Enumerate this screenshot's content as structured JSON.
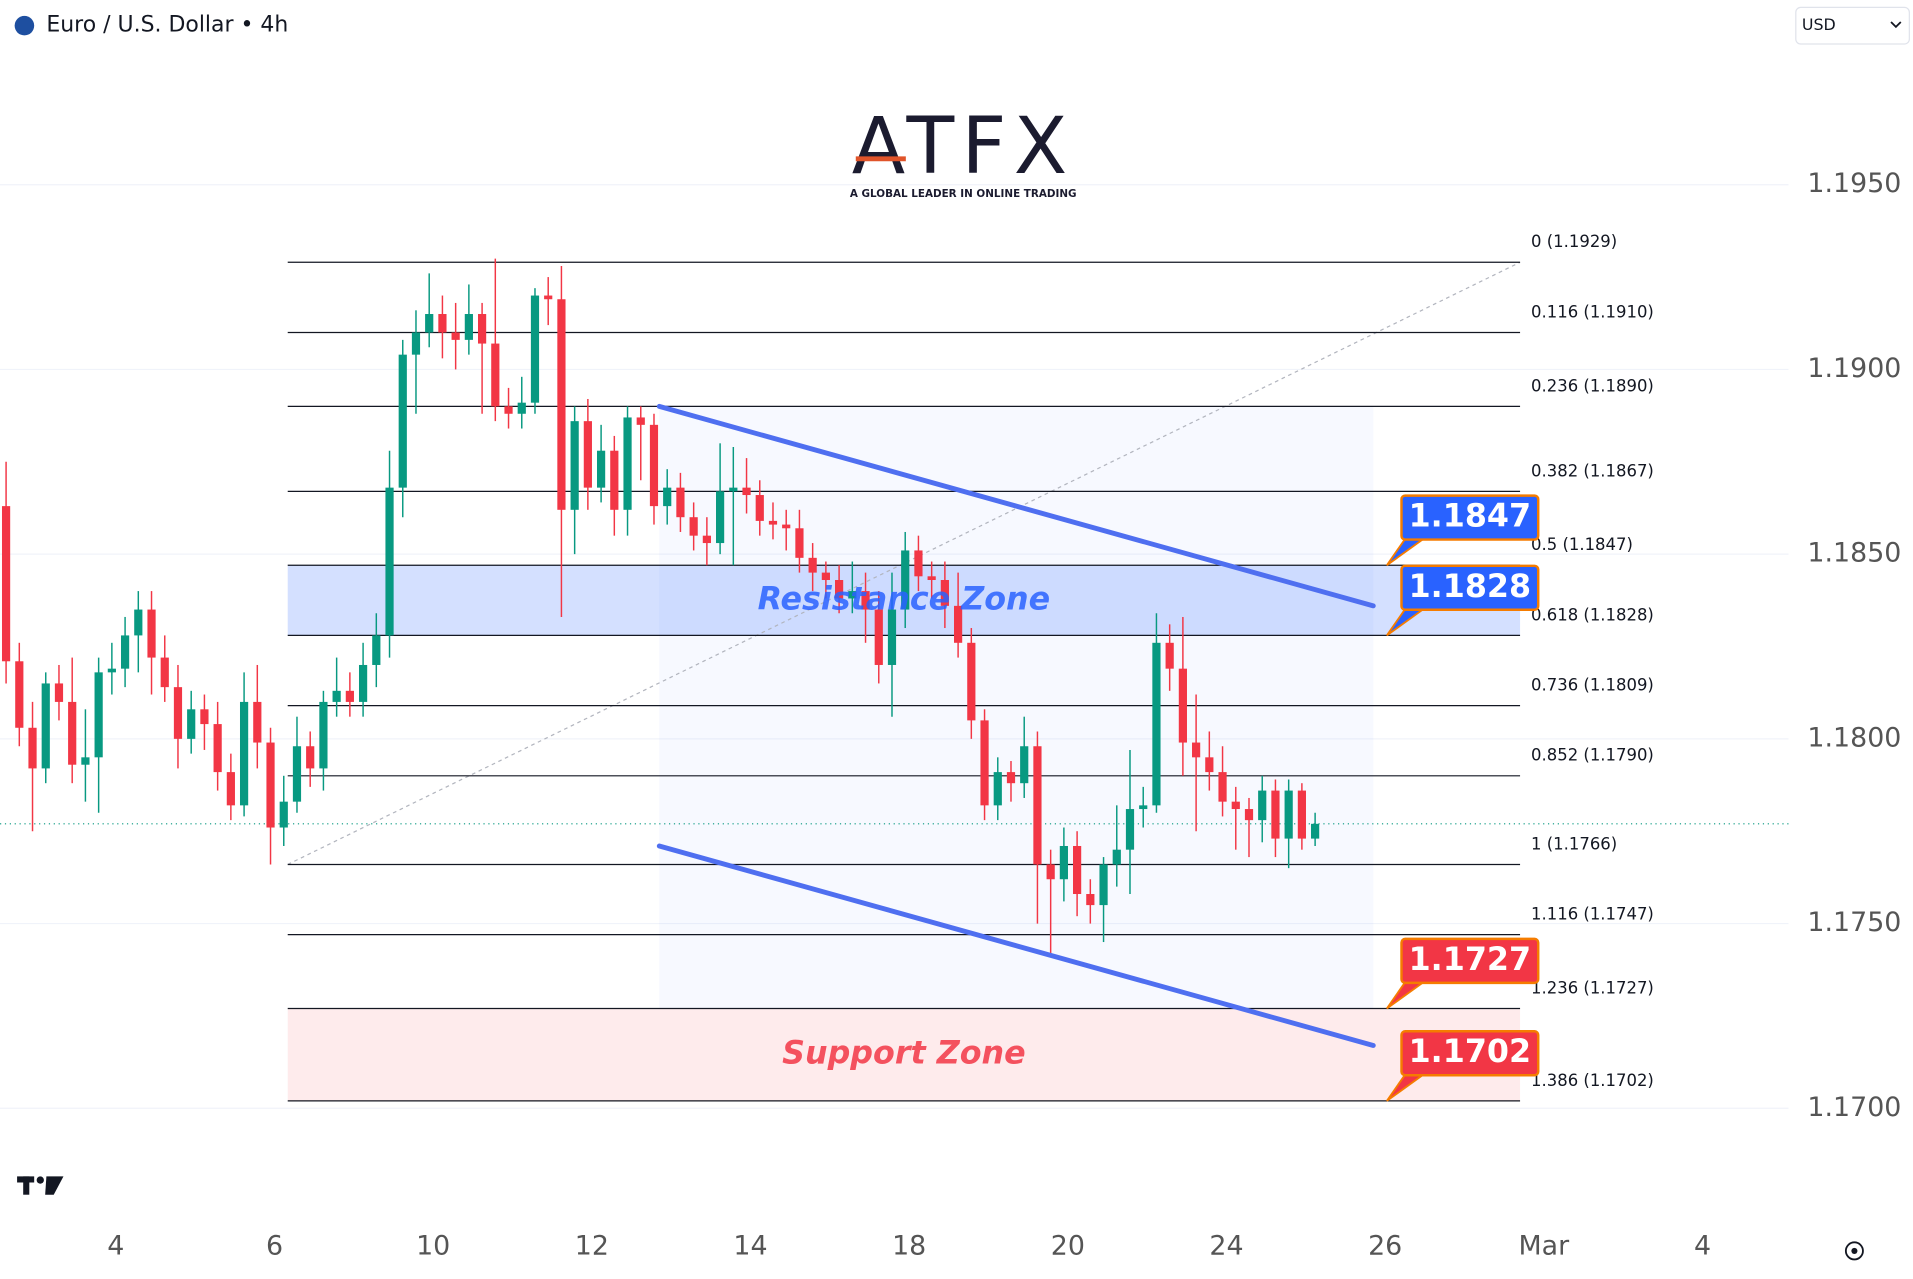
{
  "header": {
    "title": "Euro / U.S. Dollar • 4h",
    "currency": "USD"
  },
  "logo": {
    "name": "ATFX",
    "tagline": "A GLOBAL LEADER IN ONLINE TRADING"
  },
  "chart_data": {
    "type": "candlestick",
    "open": [
      1.1863,
      1.1821,
      1.1803,
      1.1792,
      1.1815,
      1.181,
      1.1793,
      1.1795,
      1.1818,
      1.1819,
      1.1828,
      1.1835,
      1.1822,
      1.1814,
      1.18,
      1.1808,
      1.1804,
      1.1791,
      1.1782,
      1.181,
      1.1799,
      1.1776,
      1.1783,
      1.1798,
      1.1792,
      1.181,
      1.1813,
      1.181,
      1.182,
      1.1828,
      1.1868,
      1.1904,
      1.191,
      1.1915,
      1.191,
      1.1908,
      1.1915,
      1.1907,
      1.189,
      1.1888,
      1.1891,
      1.192,
      1.1919,
      1.1862,
      1.1886,
      1.1868,
      1.1878,
      1.1862,
      1.1887,
      1.1885,
      1.1863,
      1.1868,
      1.186,
      1.1855,
      1.1853,
      1.1867,
      1.1868,
      1.1866,
      1.1859,
      1.1858,
      1.1857,
      1.1849,
      1.1845,
      1.1843,
      1.1838,
      1.184,
      1.1835,
      1.182,
      1.1835,
      1.1851,
      1.1844,
      1.1843,
      1.1836,
      1.1826,
      1.1805,
      1.1782,
      1.1791,
      1.1788,
      1.1798,
      1.1766,
      1.1762,
      1.1771,
      1.1758,
      1.1755,
      1.1766,
      1.177,
      1.1781,
      1.1782,
      1.1826,
      1.1819,
      1.1799,
      1.1795,
      1.1791,
      1.1783,
      1.1781,
      1.1778,
      1.1786,
      1.1773,
      1.1786,
      1.1773
    ],
    "high": [
      1.1875,
      1.1826,
      1.181,
      1.1818,
      1.182,
      1.1822,
      1.1808,
      1.1822,
      1.1826,
      1.1833,
      1.184,
      1.184,
      1.1828,
      1.182,
      1.1813,
      1.1812,
      1.181,
      1.1796,
      1.1818,
      1.182,
      1.1803,
      1.179,
      1.1806,
      1.1802,
      1.1813,
      1.1822,
      1.1818,
      1.1826,
      1.1834,
      1.1878,
      1.1908,
      1.1916,
      1.1926,
      1.192,
      1.1918,
      1.1923,
      1.1918,
      1.193,
      1.1895,
      1.1898,
      1.1922,
      1.1925,
      1.1928,
      1.189,
      1.1892,
      1.1885,
      1.1882,
      1.189,
      1.189,
      1.1888,
      1.1873,
      1.1872,
      1.1864,
      1.186,
      1.188,
      1.1879,
      1.1876,
      1.187,
      1.1864,
      1.1862,
      1.1862,
      1.1853,
      1.1848,
      1.1847,
      1.1848,
      1.1845,
      1.184,
      1.1845,
      1.1856,
      1.1855,
      1.1848,
      1.1848,
      1.1845,
      1.183,
      1.1808,
      1.1795,
      1.1794,
      1.1806,
      1.1802,
      1.177,
      1.1776,
      1.1775,
      1.1762,
      1.1768,
      1.1782,
      1.1797,
      1.1787,
      1.1834,
      1.1831,
      1.1833,
      1.1812,
      1.1802,
      1.1798,
      1.1787,
      1.1784,
      1.179,
      1.1789,
      1.1789,
      1.1788,
      1.178
    ],
    "low": [
      1.1815,
      1.1798,
      1.1775,
      1.1788,
      1.1805,
      1.1788,
      1.1783,
      1.178,
      1.1812,
      1.1814,
      1.1818,
      1.1812,
      1.181,
      1.1792,
      1.1796,
      1.1797,
      1.1786,
      1.1778,
      1.1779,
      1.1792,
      1.1766,
      1.1771,
      1.178,
      1.1787,
      1.1786,
      1.1806,
      1.1806,
      1.1806,
      1.1814,
      1.1822,
      1.186,
      1.1888,
      1.1906,
      1.1903,
      1.19,
      1.1904,
      1.1888,
      1.1886,
      1.1884,
      1.1884,
      1.1888,
      1.1912,
      1.1833,
      1.185,
      1.1862,
      1.1864,
      1.1855,
      1.1855,
      1.187,
      1.1858,
      1.1858,
      1.1856,
      1.1851,
      1.1847,
      1.185,
      1.1847,
      1.1861,
      1.1855,
      1.1854,
      1.1851,
      1.1845,
      1.184,
      1.1838,
      1.1834,
      1.1834,
      1.1826,
      1.1815,
      1.1806,
      1.183,
      1.184,
      1.1838,
      1.183,
      1.1822,
      1.18,
      1.1778,
      1.1778,
      1.1783,
      1.1784,
      1.175,
      1.1741,
      1.1756,
      1.1752,
      1.175,
      1.1745,
      1.176,
      1.1758,
      1.1776,
      1.178,
      1.1813,
      1.179,
      1.1775,
      1.1786,
      1.1779,
      1.177,
      1.1768,
      1.1772,
      1.1768,
      1.1765,
      1.177,
      1.1771
    ],
    "close": [
      1.1821,
      1.1803,
      1.1792,
      1.1815,
      1.181,
      1.1793,
      1.1795,
      1.1818,
      1.1819,
      1.1828,
      1.1835,
      1.1822,
      1.1814,
      1.18,
      1.1808,
      1.1804,
      1.1791,
      1.1782,
      1.181,
      1.1799,
      1.1776,
      1.1783,
      1.1798,
      1.1792,
      1.181,
      1.1813,
      1.181,
      1.182,
      1.1828,
      1.1868,
      1.1904,
      1.191,
      1.1915,
      1.191,
      1.1908,
      1.1915,
      1.1907,
      1.189,
      1.1888,
      1.1891,
      1.192,
      1.1919,
      1.1862,
      1.1886,
      1.1868,
      1.1878,
      1.1862,
      1.1887,
      1.1885,
      1.1863,
      1.1868,
      1.186,
      1.1855,
      1.1853,
      1.1867,
      1.1868,
      1.1866,
      1.1859,
      1.1858,
      1.1857,
      1.1849,
      1.1845,
      1.1843,
      1.1838,
      1.184,
      1.1835,
      1.182,
      1.1835,
      1.1851,
      1.1844,
      1.1843,
      1.1836,
      1.1826,
      1.1805,
      1.1782,
      1.1791,
      1.1788,
      1.1798,
      1.1766,
      1.1762,
      1.1771,
      1.1758,
      1.1755,
      1.1766,
      1.177,
      1.1781,
      1.1782,
      1.1826,
      1.1819,
      1.1799,
      1.1795,
      1.1791,
      1.1783,
      1.1781,
      1.1778,
      1.1786,
      1.1773,
      1.1786,
      1.1773,
      1.1777
    ],
    "up_color": "#089981",
    "down_color": "#f23645",
    "xlim": [
      -0.46,
      134.8
    ],
    "xticks": [
      {
        "value": 8.3,
        "label": "4"
      },
      {
        "value": 20.3,
        "label": "6"
      },
      {
        "value": 32.3,
        "label": "10"
      },
      {
        "value": 44.3,
        "label": "12"
      },
      {
        "value": 56.3,
        "label": "14"
      },
      {
        "value": 68.3,
        "label": "18"
      },
      {
        "value": 80.3,
        "label": "20"
      },
      {
        "value": 92.3,
        "label": "24"
      },
      {
        "value": 104.3,
        "label": "26"
      },
      {
        "value": 116.3,
        "label": "Mar"
      },
      {
        "value": 128.3,
        "label": "4"
      }
    ],
    "ylim": [
      1.1669,
      1.2
    ],
    "yticks": [
      {
        "value": 1.195,
        "label": "1.1950"
      },
      {
        "value": 1.19,
        "label": "1.1900"
      },
      {
        "value": 1.185,
        "label": "1.1850"
      },
      {
        "value": 1.18,
        "label": "1.1800"
      },
      {
        "value": 1.175,
        "label": "1.1750"
      },
      {
        "value": 1.17,
        "label": "1.1700"
      }
    ],
    "grid": true,
    "fib_x": [
      21.3,
      114.5
    ],
    "fib_levels": [
      {
        "value": 1.1929,
        "label": "0 (1.1929)"
      },
      {
        "value": 1.191,
        "label": "0.116 (1.1910)"
      },
      {
        "value": 1.189,
        "label": "0.236 (1.1890)"
      },
      {
        "value": 1.1867,
        "label": "0.382 (1.1867)"
      },
      {
        "value": 1.1847,
        "label": "0.5 (1.1847)"
      },
      {
        "value": 1.1828,
        "label": "0.618 (1.1828)"
      },
      {
        "value": 1.1809,
        "label": "0.736 (1.1809)"
      },
      {
        "value": 1.179,
        "label": "0.852 (1.1790)"
      },
      {
        "value": 1.1766,
        "label": "1 (1.1766)"
      },
      {
        "value": 1.1747,
        "label": "1.116 (1.1747)"
      },
      {
        "value": 1.1727,
        "label": "1.236 (1.1727)"
      },
      {
        "value": 1.1702,
        "label": "1.386 (1.1702)"
      }
    ],
    "zones": [
      {
        "label": "Resistance Zone",
        "from": 1.1828,
        "to": 1.1847,
        "color": "#2962ff"
      },
      {
        "label": "Support Zone",
        "from": 1.1702,
        "to": 1.1727,
        "color": "#f23645"
      }
    ],
    "price_tags": [
      {
        "value": 1.1847,
        "color": "#2962ff"
      },
      {
        "value": 1.1828,
        "color": "#2962ff"
      },
      {
        "value": 1.1727,
        "color": "#f23645"
      },
      {
        "value": 1.1702,
        "color": "#f23645"
      }
    ],
    "channel": [
      {
        "x": [
          49.4,
          103.4
        ],
        "y": [
          1.189,
          1.1836
        ]
      },
      {
        "x": [
          49.4,
          103.4
        ],
        "y": [
          1.1771,
          1.1717
        ]
      }
    ],
    "channel_color": "#4f6ff0"
  }
}
